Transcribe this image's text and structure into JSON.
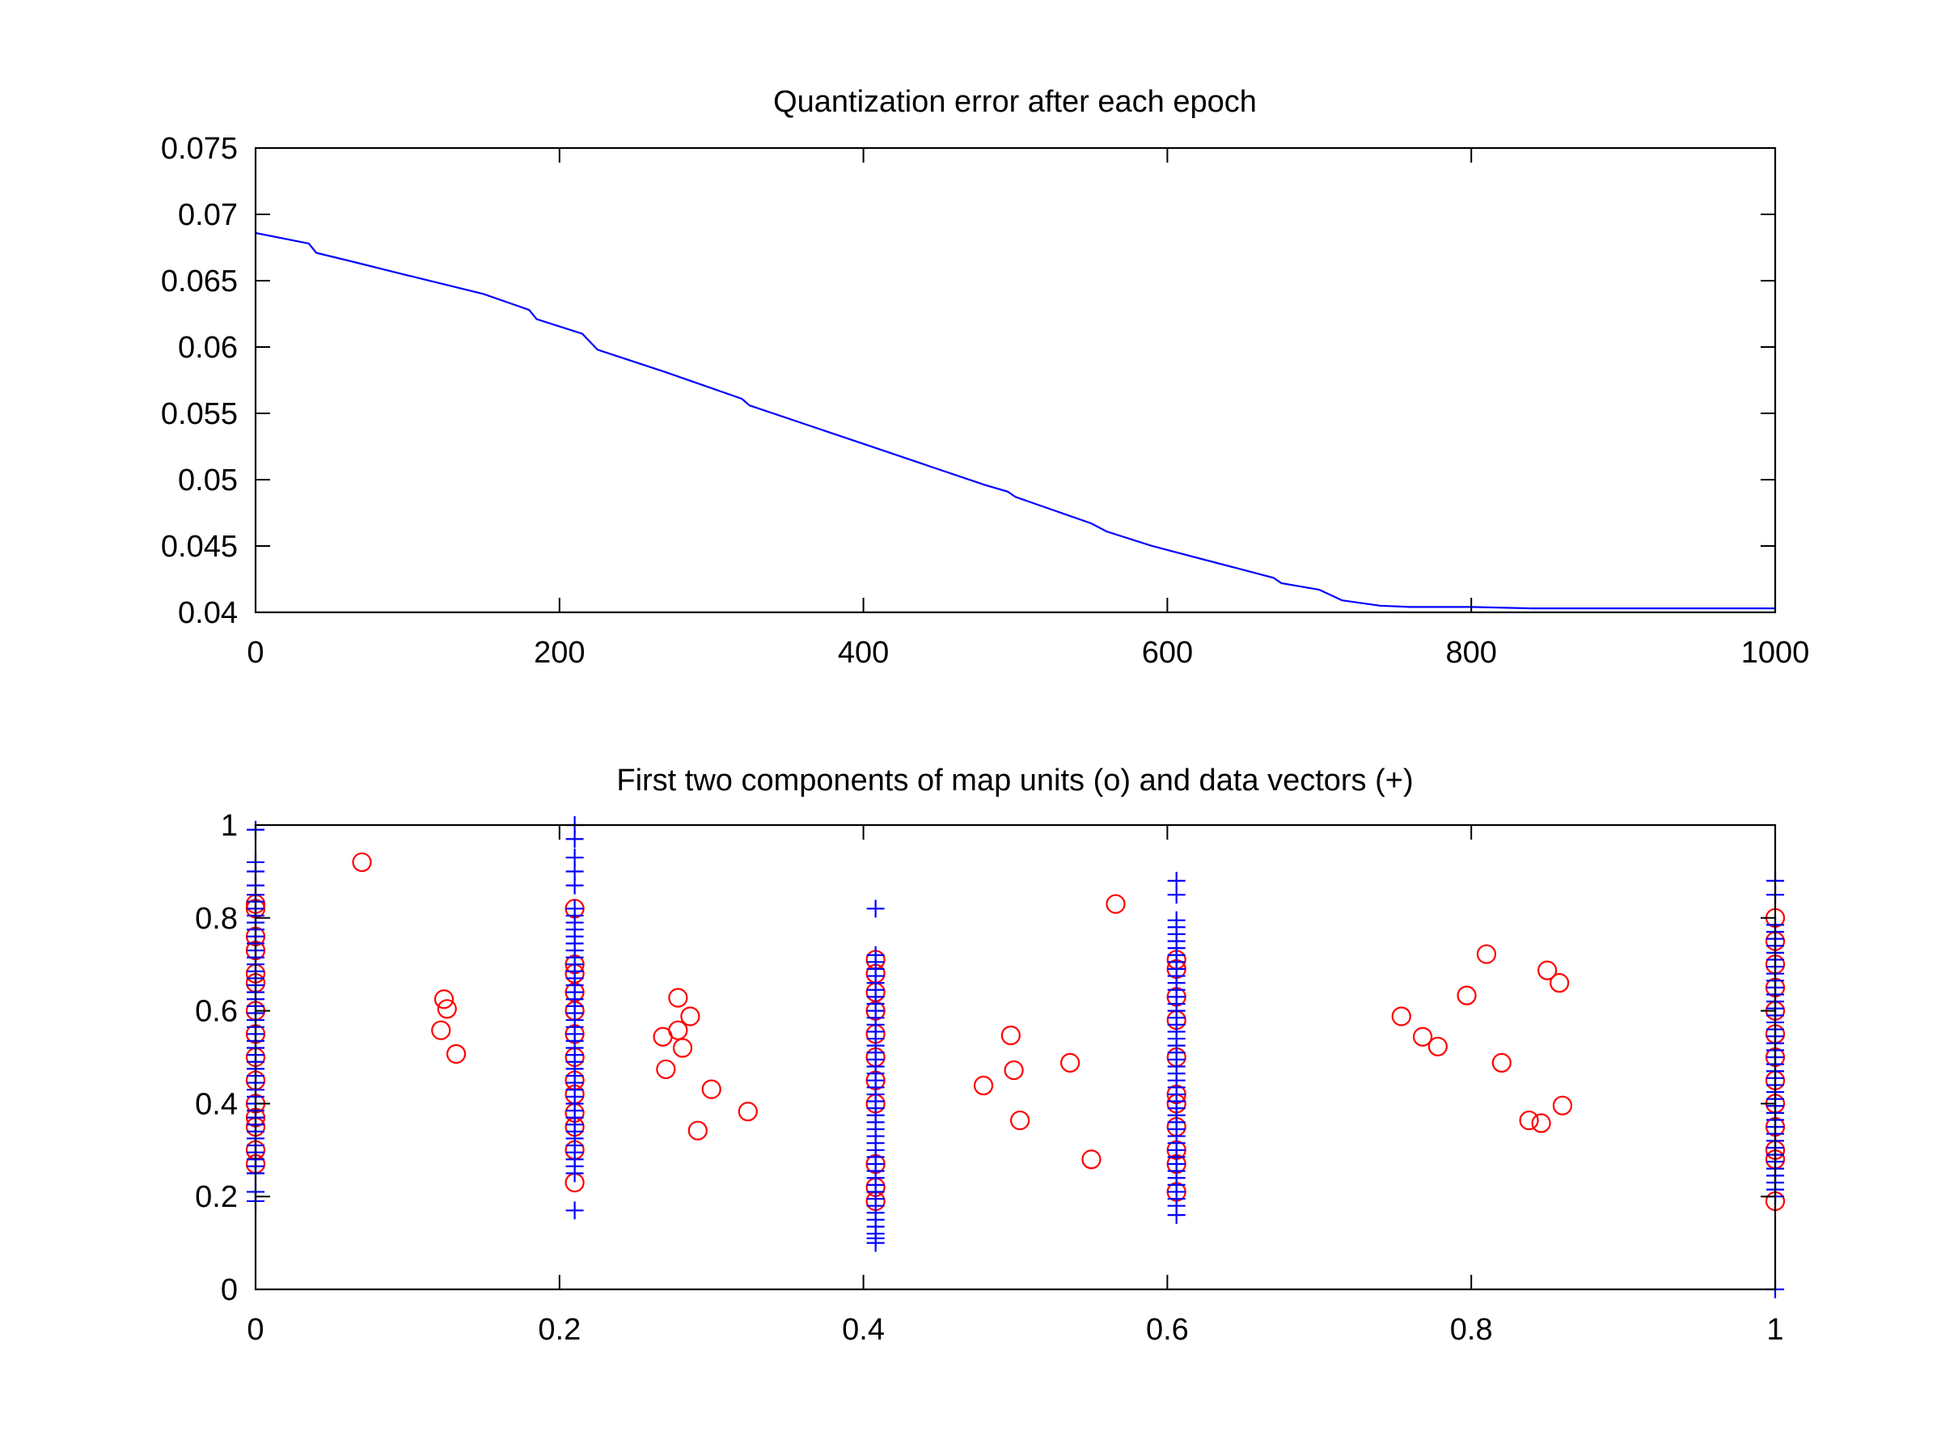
{
  "chart_data": [
    {
      "type": "line",
      "title": "Quantization error after each epoch",
      "xlabel": "",
      "ylabel": "",
      "xlim": [
        0,
        1000
      ],
      "ylim": [
        0.04,
        0.075
      ],
      "xticks": [
        "0",
        "200",
        "400",
        "600",
        "800",
        "1000"
      ],
      "xtick_values": [
        0,
        200,
        400,
        600,
        800,
        1000
      ],
      "yticks": [
        "0.04",
        "0.045",
        "0.05",
        "0.055",
        "0.06",
        "0.065",
        "0.07",
        "0.075"
      ],
      "ytick_values": [
        0.04,
        0.045,
        0.05,
        0.055,
        0.06,
        0.065,
        0.07,
        0.075
      ],
      "grid": false,
      "series": [
        {
          "name": "quantization error",
          "color": "#0000ff",
          "x": [
            0,
            35,
            40,
            65,
            100,
            150,
            180,
            185,
            215,
            225,
            270,
            320,
            325,
            400,
            480,
            495,
            500,
            550,
            560,
            590,
            600,
            670,
            675,
            700,
            715,
            740,
            760,
            800,
            840,
            1000
          ],
          "y": [
            0.0686,
            0.0678,
            0.0671,
            0.0664,
            0.0654,
            0.064,
            0.0628,
            0.0621,
            0.061,
            0.0598,
            0.0581,
            0.0561,
            0.0556,
            0.0527,
            0.0496,
            0.0491,
            0.0487,
            0.0467,
            0.0461,
            0.045,
            0.0447,
            0.0426,
            0.0422,
            0.0417,
            0.0409,
            0.0405,
            0.0404,
            0.0404,
            0.0403,
            0.0403
          ]
        }
      ]
    },
    {
      "type": "scatter",
      "title": "First two components of map units (o) and data vectors (+)",
      "xlabel": "",
      "ylabel": "",
      "xlim": [
        0,
        1
      ],
      "ylim": [
        0,
        1
      ],
      "xticks": [
        "0",
        "0.2",
        "0.4",
        "0.6",
        "0.8",
        "1"
      ],
      "xtick_values": [
        0,
        0.2,
        0.4,
        0.6,
        0.8,
        1
      ],
      "yticks": [
        "0",
        "0.2",
        "0.4",
        "0.6",
        "0.8",
        "1"
      ],
      "ytick_values": [
        0,
        0.2,
        0.4,
        0.6,
        0.8,
        1
      ],
      "grid": false,
      "series": [
        {
          "name": "map units (o)",
          "marker": "circle",
          "color": "#ff0000",
          "points": [
            [
              0.07,
              0.92
            ],
            [
              0.124,
              0.625
            ],
            [
              0.126,
              0.604
            ],
            [
              0.122,
              0.558
            ],
            [
              0.132,
              0.507
            ],
            [
              0.278,
              0.628
            ],
            [
              0.286,
              0.588
            ],
            [
              0.268,
              0.544
            ],
            [
              0.278,
              0.558
            ],
            [
              0.281,
              0.52
            ],
            [
              0.27,
              0.474
            ],
            [
              0.3,
              0.431
            ],
            [
              0.324,
              0.383
            ],
            [
              0.291,
              0.342
            ],
            [
              0.566,
              0.83
            ],
            [
              0.497,
              0.547
            ],
            [
              0.499,
              0.472
            ],
            [
              0.479,
              0.439
            ],
            [
              0.536,
              0.488
            ],
            [
              0.503,
              0.364
            ],
            [
              0.55,
              0.28
            ],
            [
              0.81,
              0.722
            ],
            [
              0.797,
              0.633
            ],
            [
              0.85,
              0.687
            ],
            [
              0.858,
              0.66
            ],
            [
              0.754,
              0.588
            ],
            [
              0.768,
              0.544
            ],
            [
              0.778,
              0.523
            ],
            [
              0.82,
              0.488
            ],
            [
              0.838,
              0.364
            ],
            [
              0.846,
              0.358
            ],
            [
              0.86,
              0.396
            ],
            [
              0,
              0.83
            ],
            [
              0,
              0.82
            ],
            [
              0,
              0.76
            ],
            [
              0,
              0.73
            ],
            [
              0,
              0.68
            ],
            [
              0,
              0.66
            ],
            [
              0,
              0.6
            ],
            [
              0,
              0.55
            ],
            [
              0,
              0.5
            ],
            [
              0,
              0.45
            ],
            [
              0,
              0.4
            ],
            [
              0,
              0.37
            ],
            [
              0,
              0.35
            ],
            [
              0,
              0.3
            ],
            [
              0,
              0.27
            ],
            [
              0.21,
              0.82
            ],
            [
              0.21,
              0.7
            ],
            [
              0.21,
              0.68
            ],
            [
              0.21,
              0.64
            ],
            [
              0.21,
              0.6
            ],
            [
              0.21,
              0.55
            ],
            [
              0.21,
              0.5
            ],
            [
              0.21,
              0.45
            ],
            [
              0.21,
              0.42
            ],
            [
              0.21,
              0.38
            ],
            [
              0.21,
              0.35
            ],
            [
              0.21,
              0.3
            ],
            [
              0.21,
              0.23
            ],
            [
              0.408,
              0.71
            ],
            [
              0.408,
              0.68
            ],
            [
              0.408,
              0.64
            ],
            [
              0.408,
              0.6
            ],
            [
              0.408,
              0.55
            ],
            [
              0.408,
              0.5
            ],
            [
              0.408,
              0.45
            ],
            [
              0.408,
              0.4
            ],
            [
              0.408,
              0.27
            ],
            [
              0.408,
              0.22
            ],
            [
              0.408,
              0.19
            ],
            [
              0.606,
              0.71
            ],
            [
              0.606,
              0.69
            ],
            [
              0.606,
              0.63
            ],
            [
              0.606,
              0.58
            ],
            [
              0.606,
              0.5
            ],
            [
              0.606,
              0.42
            ],
            [
              0.606,
              0.4
            ],
            [
              0.606,
              0.35
            ],
            [
              0.606,
              0.3
            ],
            [
              0.606,
              0.27
            ],
            [
              0.606,
              0.21
            ],
            [
              1,
              0.8
            ],
            [
              1,
              0.75
            ],
            [
              1,
              0.7
            ],
            [
              1,
              0.65
            ],
            [
              1,
              0.6
            ],
            [
              1,
              0.55
            ],
            [
              1,
              0.5
            ],
            [
              1,
              0.45
            ],
            [
              1,
              0.4
            ],
            [
              1,
              0.35
            ],
            [
              1,
              0.3
            ],
            [
              1,
              0.28
            ],
            [
              1,
              0.19
            ]
          ]
        },
        {
          "name": "data vectors (+)",
          "marker": "plus",
          "color": "#0000ff",
          "columns": [
            {
              "x": 0,
              "dense_from": 0.25,
              "dense_to": 0.85,
              "step": 0.015,
              "extra": [
                0.87,
                0.9,
                0.92,
                0.99,
                0.21,
                0.19
              ]
            },
            {
              "x": 0.21,
              "dense_from": 0.25,
              "dense_to": 0.83,
              "step": 0.015,
              "extra": [
                0.87,
                0.9,
                0.93,
                0.97,
                1.0,
                0.17
              ]
            },
            {
              "x": 0.408,
              "dense_from": 0.12,
              "dense_to": 0.73,
              "step": 0.015,
              "extra": [
                0.82,
                0.1,
                0.11
              ]
            },
            {
              "x": 0.606,
              "dense_from": 0.18,
              "dense_to": 0.8,
              "step": 0.015,
              "extra": [
                0.85,
                0.88,
                0.16
              ]
            },
            {
              "x": 1.0,
              "dense_from": 0.2,
              "dense_to": 0.79,
              "step": 0.015,
              "extra": [
                0.85,
                0.88,
                0.0
              ]
            }
          ]
        }
      ]
    }
  ]
}
